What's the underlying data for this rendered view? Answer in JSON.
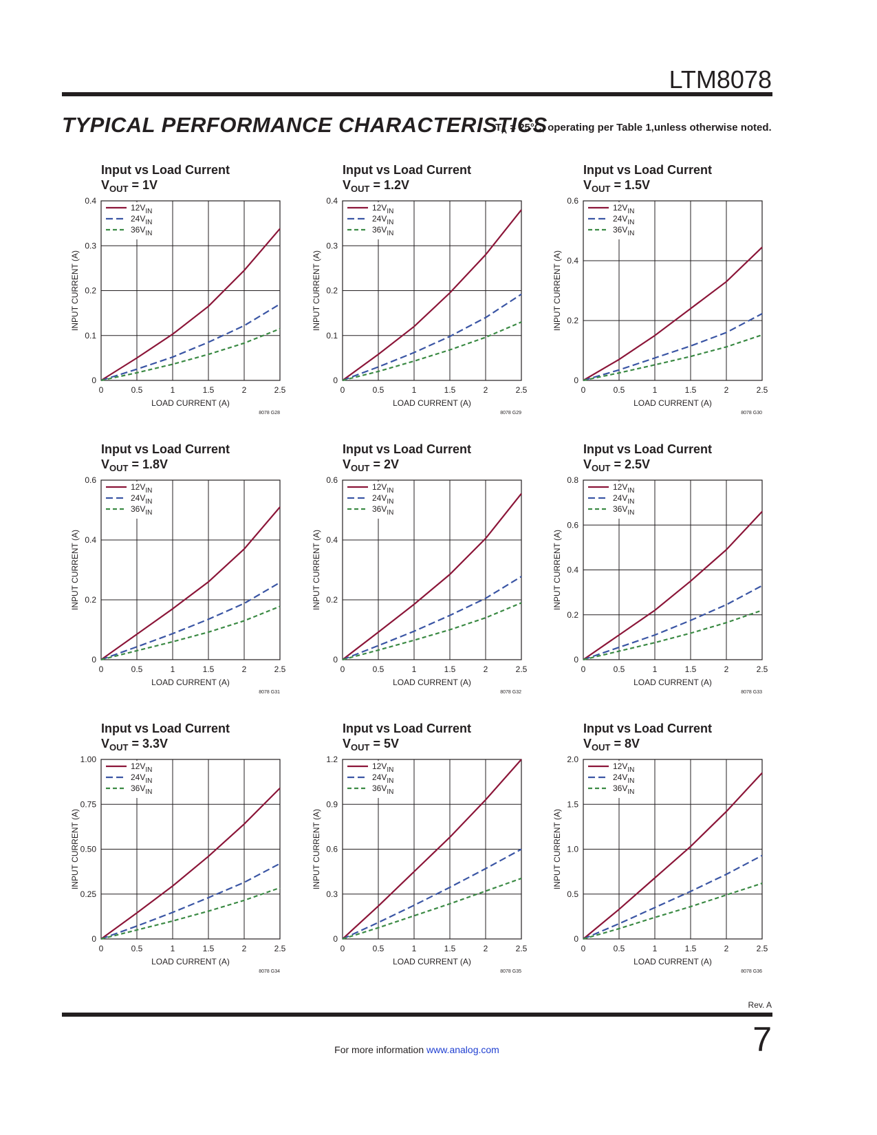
{
  "header": {
    "part": "LTM8078",
    "section": "TYPICAL PERFORMANCE CHARACTERISTICS",
    "conditions": {
      "symbol": "T",
      "subscript": "A",
      "text": " = 25°C, operating per Table 1,unless otherwise noted."
    }
  },
  "footer": {
    "revision": "Rev. A",
    "info": "For more information ",
    "link": "www.analog.com",
    "page": "7"
  },
  "chart_data": [
    {
      "type": "line",
      "title": "Input vs Load Current",
      "subtitle": {
        "symbol": "V",
        "subscript": "OUT",
        "text": " = 1V"
      },
      "code": "8078 G28",
      "x_label": "LOAD CURRENT (A)",
      "y_label": "INPUT CURRENT (A)",
      "x": [
        0,
        0.5,
        1,
        1.5,
        2,
        2.5
      ],
      "xlim": [
        0,
        2.5
      ],
      "xticks": [
        0,
        0.5,
        1,
        1.5,
        2,
        2.5
      ],
      "ylim": [
        0,
        0.4
      ],
      "yticks": [
        0,
        0.1,
        0.2,
        0.3,
        0.4
      ],
      "grid": true,
      "legend": "upper left",
      "series": [
        {
          "name": "12V",
          "name_subscript": "IN",
          "color": "#8b1538",
          "line_style": "solid",
          "values": [
            0,
            0.05,
            0.103,
            0.165,
            0.245,
            0.338
          ]
        },
        {
          "name": "24V",
          "name_subscript": "IN",
          "color": "#3a55a4",
          "line_style": "dashed",
          "values": [
            0,
            0.025,
            0.052,
            0.085,
            0.122,
            0.17
          ]
        },
        {
          "name": "36V",
          "name_subscript": "IN",
          "color": "#3b8a44",
          "line_style": "short-dashed",
          "values": [
            0,
            0.017,
            0.036,
            0.058,
            0.083,
            0.115
          ]
        }
      ]
    },
    {
      "type": "line",
      "title": "Input vs Load Current",
      "subtitle": {
        "symbol": "V",
        "subscript": "OUT",
        "text": " = 1.2V"
      },
      "code": "8078 G29",
      "x_label": "LOAD CURRENT (A)",
      "y_label": "INPUT CURRENT (A)",
      "x": [
        0,
        0.5,
        1,
        1.5,
        2,
        2.5
      ],
      "xlim": [
        0,
        2.5
      ],
      "xticks": [
        0,
        0.5,
        1,
        1.5,
        2,
        2.5
      ],
      "ylim": [
        0,
        0.4
      ],
      "yticks": [
        0,
        0.1,
        0.2,
        0.3,
        0.4
      ],
      "grid": true,
      "legend": "upper left",
      "series": [
        {
          "name": "12V",
          "name_subscript": "IN",
          "color": "#8b1538",
          "line_style": "solid",
          "values": [
            0,
            0.058,
            0.12,
            0.195,
            0.28,
            0.38
          ]
        },
        {
          "name": "24V",
          "name_subscript": "IN",
          "color": "#3a55a4",
          "line_style": "dashed",
          "values": [
            0,
            0.03,
            0.062,
            0.098,
            0.14,
            0.192
          ]
        },
        {
          "name": "36V",
          "name_subscript": "IN",
          "color": "#3b8a44",
          "line_style": "short-dashed",
          "values": [
            0,
            0.02,
            0.043,
            0.068,
            0.096,
            0.13
          ]
        }
      ]
    },
    {
      "type": "line",
      "title": "Input vs Load Current",
      "subtitle": {
        "symbol": "V",
        "subscript": "OUT",
        "text": " = 1.5V"
      },
      "code": "8078 G30",
      "x_label": "LOAD CURRENT (A)",
      "y_label": "INPUT CURRENT (A)",
      "x": [
        0,
        0.5,
        1,
        1.5,
        2,
        2.5
      ],
      "xlim": [
        0,
        2.5
      ],
      "xticks": [
        0,
        0.5,
        1,
        1.5,
        2,
        2.5
      ],
      "ylim": [
        0,
        0.6
      ],
      "yticks": [
        0,
        0.2,
        0.4,
        0.6
      ],
      "grid": true,
      "legend": "upper left",
      "series": [
        {
          "name": "12V",
          "name_subscript": "IN",
          "color": "#8b1538",
          "line_style": "solid",
          "values": [
            0,
            0.07,
            0.15,
            0.24,
            0.33,
            0.445
          ]
        },
        {
          "name": "24V",
          "name_subscript": "IN",
          "color": "#3a55a4",
          "line_style": "dashed",
          "values": [
            0,
            0.035,
            0.075,
            0.115,
            0.16,
            0.223
          ]
        },
        {
          "name": "36V",
          "name_subscript": "IN",
          "color": "#3b8a44",
          "line_style": "short-dashed",
          "values": [
            0,
            0.025,
            0.052,
            0.08,
            0.112,
            0.152
          ]
        }
      ]
    },
    {
      "type": "line",
      "title": "Input vs Load Current",
      "subtitle": {
        "symbol": "V",
        "subscript": "OUT",
        "text": " = 1.8V"
      },
      "code": "8078 G31",
      "x_label": "LOAD CURRENT (A)",
      "y_label": "INPUT CURRENT (A)",
      "x": [
        0,
        0.5,
        1,
        1.5,
        2,
        2.5
      ],
      "xlim": [
        0,
        2.5
      ],
      "xticks": [
        0,
        0.5,
        1,
        1.5,
        2,
        2.5
      ],
      "ylim": [
        0,
        0.6
      ],
      "yticks": [
        0,
        0.2,
        0.4,
        0.6
      ],
      "grid": true,
      "legend": "upper left",
      "series": [
        {
          "name": "12V",
          "name_subscript": "IN",
          "color": "#8b1538",
          "line_style": "solid",
          "values": [
            0,
            0.085,
            0.17,
            0.26,
            0.37,
            0.51
          ]
        },
        {
          "name": "24V",
          "name_subscript": "IN",
          "color": "#3a55a4",
          "line_style": "dashed",
          "values": [
            0,
            0.043,
            0.087,
            0.135,
            0.188,
            0.258
          ]
        },
        {
          "name": "36V",
          "name_subscript": "IN",
          "color": "#3b8a44",
          "line_style": "short-dashed",
          "values": [
            0,
            0.03,
            0.06,
            0.092,
            0.13,
            0.178
          ]
        }
      ]
    },
    {
      "type": "line",
      "title": "Input vs Load Current",
      "subtitle": {
        "symbol": "V",
        "subscript": "OUT",
        "text": " = 2V"
      },
      "code": "8078 G32",
      "x_label": "LOAD CURRENT (A)",
      "y_label": "INPUT CURRENT (A)",
      "x": [
        0,
        0.5,
        1,
        1.5,
        2,
        2.5
      ],
      "xlim": [
        0,
        2.5
      ],
      "xticks": [
        0,
        0.5,
        1,
        1.5,
        2,
        2.5
      ],
      "ylim": [
        0,
        0.6
      ],
      "yticks": [
        0,
        0.2,
        0.4,
        0.6
      ],
      "grid": true,
      "legend": "upper left",
      "series": [
        {
          "name": "12V",
          "name_subscript": "IN",
          "color": "#8b1538",
          "line_style": "solid",
          "values": [
            0,
            0.092,
            0.185,
            0.285,
            0.405,
            0.555
          ]
        },
        {
          "name": "24V",
          "name_subscript": "IN",
          "color": "#3a55a4",
          "line_style": "dashed",
          "values": [
            0,
            0.047,
            0.095,
            0.148,
            0.205,
            0.278
          ]
        },
        {
          "name": "36V",
          "name_subscript": "IN",
          "color": "#3b8a44",
          "line_style": "short-dashed",
          "values": [
            0,
            0.032,
            0.065,
            0.1,
            0.14,
            0.19
          ]
        }
      ]
    },
    {
      "type": "line",
      "title": "Input vs Load Current",
      "subtitle": {
        "symbol": "V",
        "subscript": "OUT",
        "text": " = 2.5V"
      },
      "code": "8078 G33",
      "x_label": "LOAD CURRENT (A)",
      "y_label": "INPUT CURRENT (A)",
      "x": [
        0,
        0.5,
        1,
        1.5,
        2,
        2.5
      ],
      "xlim": [
        0,
        2.5
      ],
      "xticks": [
        0,
        0.5,
        1,
        1.5,
        2,
        2.5
      ],
      "ylim": [
        0,
        0.8
      ],
      "yticks": [
        0,
        0.2,
        0.4,
        0.6,
        0.8
      ],
      "grid": true,
      "legend": "upper left",
      "series": [
        {
          "name": "12V",
          "name_subscript": "IN",
          "color": "#8b1538",
          "line_style": "solid",
          "values": [
            0,
            0.11,
            0.22,
            0.35,
            0.49,
            0.66
          ]
        },
        {
          "name": "24V",
          "name_subscript": "IN",
          "color": "#3a55a4",
          "line_style": "dashed",
          "values": [
            0,
            0.055,
            0.11,
            0.175,
            0.245,
            0.33
          ]
        },
        {
          "name": "36V",
          "name_subscript": "IN",
          "color": "#3b8a44",
          "line_style": "short-dashed",
          "values": [
            0,
            0.038,
            0.076,
            0.118,
            0.165,
            0.22
          ]
        }
      ]
    },
    {
      "type": "line",
      "title": "Input vs Load Current",
      "subtitle": {
        "symbol": "V",
        "subscript": "OUT",
        "text": " = 3.3V"
      },
      "code": "8078 G34",
      "x_label": "LOAD CURRENT (A)",
      "y_label": "INPUT CURRENT (A)",
      "x": [
        0,
        0.5,
        1,
        1.5,
        2,
        2.5
      ],
      "xlim": [
        0,
        2.5
      ],
      "xticks": [
        0,
        0.5,
        1,
        1.5,
        2,
        2.5
      ],
      "ylim": [
        0,
        1
      ],
      "yticks": [
        0,
        {
          "value": 0.25,
          "label": "0.25"
        },
        {
          "value": 0.5,
          "label": "0.50"
        },
        {
          "value": 0.75,
          "label": "0.75"
        },
        {
          "value": 1,
          "label": "1.00"
        }
      ],
      "grid": true,
      "legend": "upper left",
      "series": [
        {
          "name": "12V",
          "name_subscript": "IN",
          "color": "#8b1538",
          "line_style": "solid",
          "values": [
            0,
            0.145,
            0.295,
            0.46,
            0.64,
            0.84
          ]
        },
        {
          "name": "24V",
          "name_subscript": "IN",
          "color": "#3a55a4",
          "line_style": "dashed",
          "values": [
            0,
            0.072,
            0.148,
            0.23,
            0.315,
            0.42
          ]
        },
        {
          "name": "36V",
          "name_subscript": "IN",
          "color": "#3b8a44",
          "line_style": "short-dashed",
          "values": [
            0,
            0.05,
            0.1,
            0.155,
            0.215,
            0.285
          ]
        }
      ]
    },
    {
      "type": "line",
      "title": "Input vs Load Current",
      "subtitle": {
        "symbol": "V",
        "subscript": "OUT",
        "text": " = 5V"
      },
      "code": "8078 G35",
      "x_label": "LOAD CURRENT (A)",
      "y_label": "INPUT CURRENT (A)",
      "x": [
        0,
        0.5,
        1,
        1.5,
        2,
        2.5
      ],
      "xlim": [
        0,
        2.5
      ],
      "xticks": [
        0,
        0.5,
        1,
        1.5,
        2,
        2.5
      ],
      "ylim": [
        0,
        1.2
      ],
      "yticks": [
        0,
        0.3,
        0.6,
        0.9,
        1.2
      ],
      "grid": true,
      "legend": "upper left",
      "series": [
        {
          "name": "12V",
          "name_subscript": "IN",
          "color": "#8b1538",
          "line_style": "solid",
          "values": [
            0,
            0.22,
            0.45,
            0.68,
            0.93,
            1.2
          ]
        },
        {
          "name": "24V",
          "name_subscript": "IN",
          "color": "#3a55a4",
          "line_style": "dashed",
          "values": [
            0,
            0.11,
            0.225,
            0.345,
            0.47,
            0.6
          ]
        },
        {
          "name": "36V",
          "name_subscript": "IN",
          "color": "#3b8a44",
          "line_style": "short-dashed",
          "values": [
            0,
            0.075,
            0.155,
            0.235,
            0.32,
            0.405
          ]
        }
      ]
    },
    {
      "type": "line",
      "title": "Input vs Load Current",
      "subtitle": {
        "symbol": "V",
        "subscript": "OUT",
        "text": " = 8V"
      },
      "code": "8078 G36",
      "x_label": "LOAD CURRENT (A)",
      "y_label": "INPUT CURRENT (A)",
      "x": [
        0,
        0.5,
        1,
        1.5,
        2,
        2.5
      ],
      "xlim": [
        0,
        2.5
      ],
      "xticks": [
        0,
        0.5,
        1,
        1.5,
        2,
        2.5
      ],
      "ylim": [
        0,
        2
      ],
      "yticks": [
        0,
        0.5,
        {
          "value": 1,
          "label": "1.0"
        },
        1.5,
        {
          "value": 2,
          "label": "2.0"
        }
      ],
      "grid": true,
      "legend": "upper left",
      "series": [
        {
          "name": "12V",
          "name_subscript": "IN",
          "color": "#8b1538",
          "line_style": "solid",
          "values": [
            0,
            0.33,
            0.68,
            1.03,
            1.42,
            1.85
          ]
        },
        {
          "name": "24V",
          "name_subscript": "IN",
          "color": "#3a55a4",
          "line_style": "dashed",
          "values": [
            0,
            0.17,
            0.35,
            0.53,
            0.72,
            0.93
          ]
        },
        {
          "name": "36V",
          "name_subscript": "IN",
          "color": "#3b8a44",
          "line_style": "short-dashed",
          "values": [
            0,
            0.115,
            0.24,
            0.36,
            0.49,
            0.62
          ]
        }
      ]
    }
  ]
}
